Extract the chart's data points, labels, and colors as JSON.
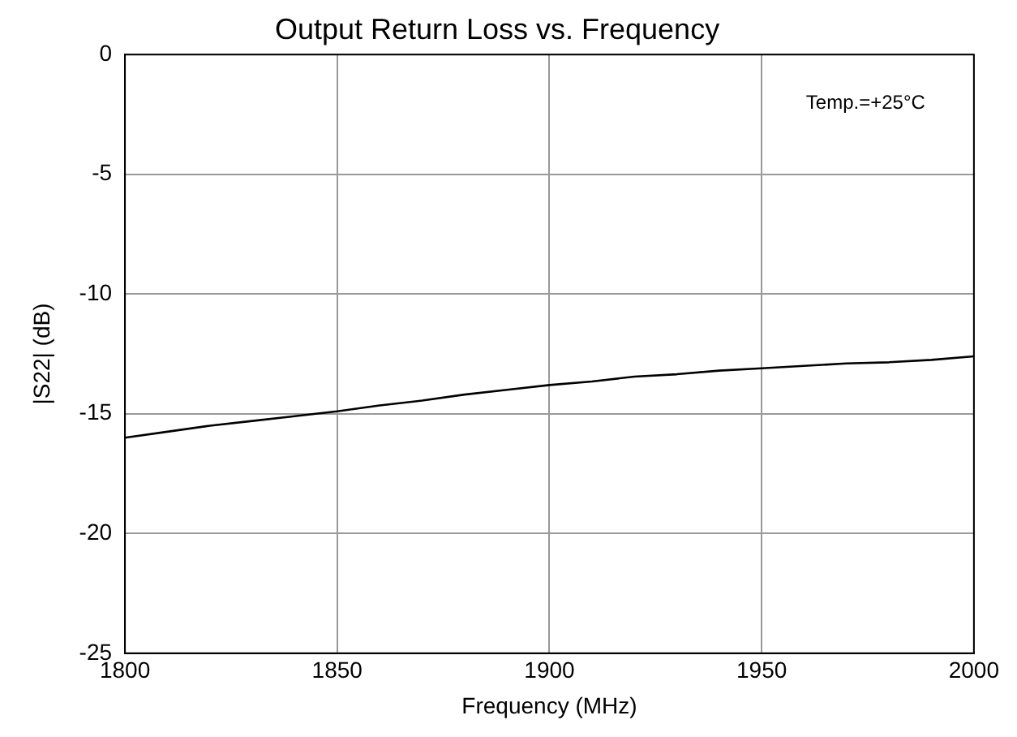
{
  "chart_data": {
    "type": "line",
    "title": "Output Return Loss vs. Frequency",
    "xlabel": "Frequency (MHz)",
    "ylabel": "|S22| (dB)",
    "annotations": [
      "Temp.=+25°C"
    ],
    "x": [
      1800,
      1810,
      1820,
      1830,
      1840,
      1850,
      1860,
      1870,
      1880,
      1890,
      1900,
      1910,
      1920,
      1930,
      1940,
      1950,
      1960,
      1970,
      1980,
      1990,
      2000
    ],
    "series": [
      {
        "color": "#000000",
        "values": [
          -16.0,
          -15.75,
          -15.5,
          -15.3,
          -15.1,
          -14.9,
          -14.65,
          -14.45,
          -14.2,
          -14.0,
          -13.8,
          -13.65,
          -13.45,
          -13.35,
          -13.2,
          -13.1,
          -13.0,
          -12.9,
          -12.85,
          -12.75,
          -12.6
        ]
      }
    ],
    "xlim": [
      1800,
      2000
    ],
    "xticks": [
      1800,
      1850,
      1900,
      1950,
      2000
    ],
    "ylim": [
      -25,
      0
    ],
    "yticks": [
      -25,
      -20,
      -15,
      -10,
      -5,
      0
    ],
    "grid": true,
    "legend": false,
    "marker": "none",
    "line_style": "solid"
  }
}
